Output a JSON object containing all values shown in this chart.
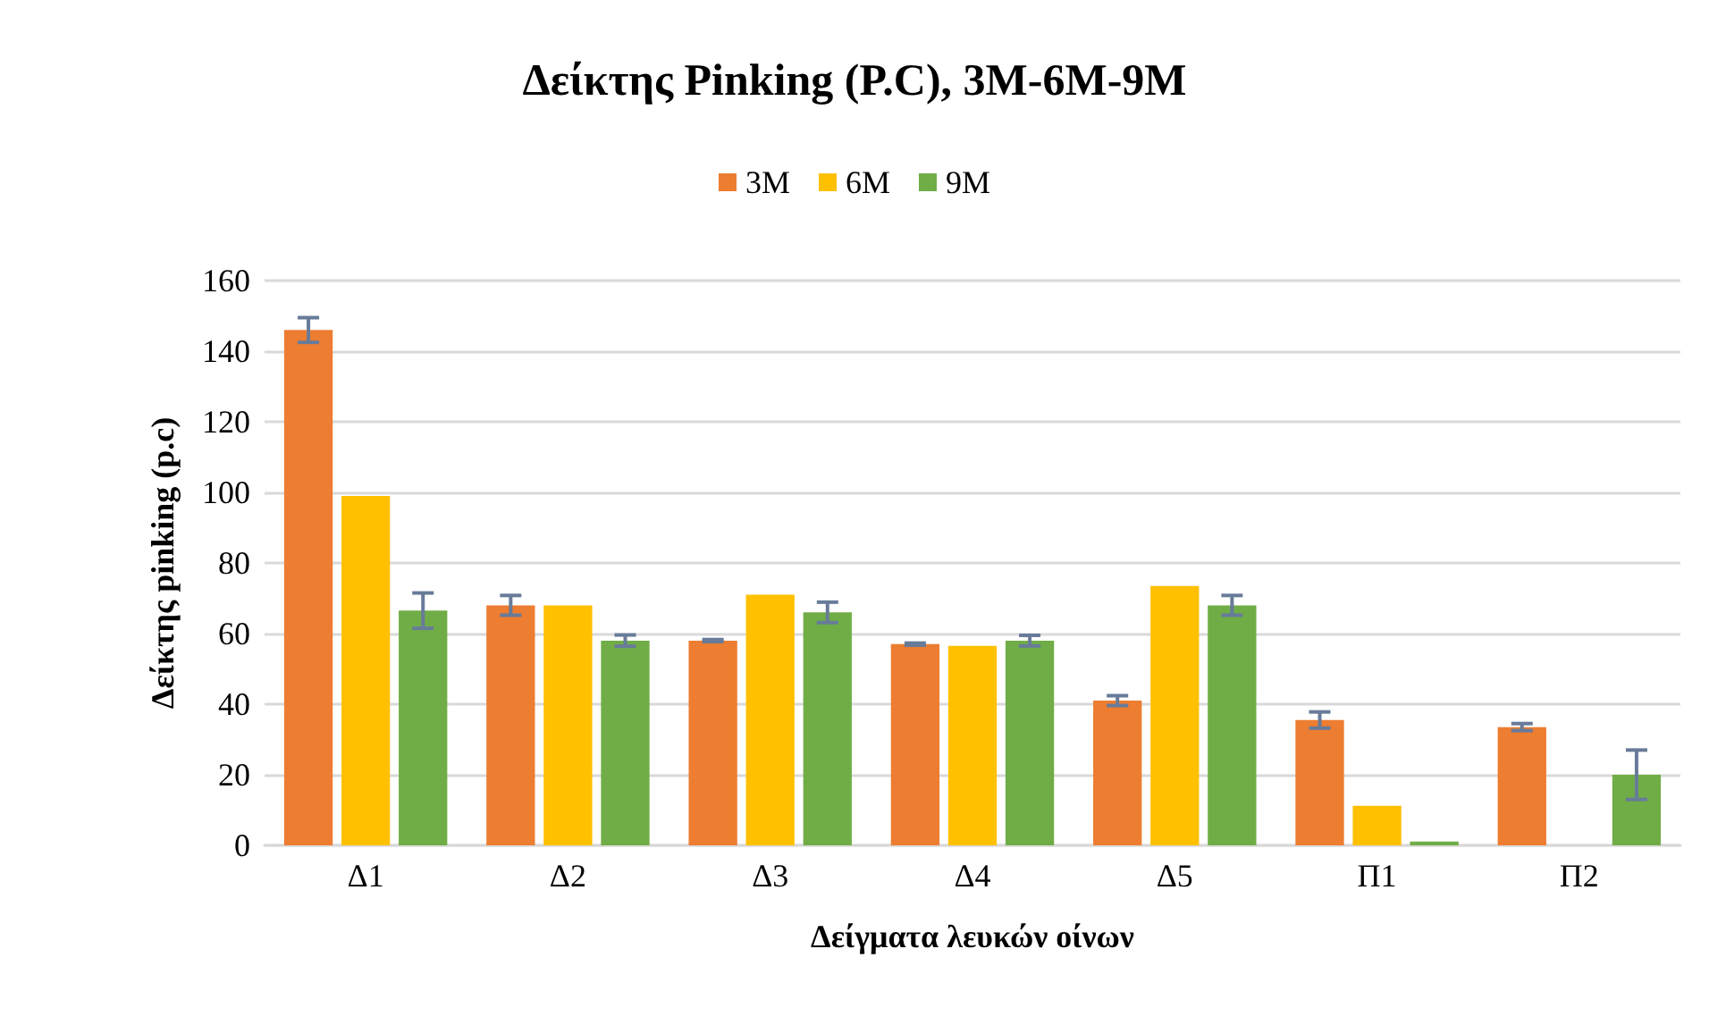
{
  "chart_data": {
    "type": "bar",
    "title": "Δείκτης Pinking (P.C), 3M-6M-9M",
    "xlabel": "Δείγματα λευκών οίνων",
    "ylabel": "Δείκτης pinking (p.c)",
    "categories": [
      "Δ1",
      "Δ2",
      "Δ3",
      "Δ4",
      "Δ5",
      "Π1",
      "Π2"
    ],
    "series": [
      {
        "name": "3M",
        "color": "#ed7d31",
        "values": [
          146,
          68,
          58,
          57,
          41,
          35.5,
          33.5
        ],
        "errors": [
          3.5,
          2.8,
          0.3,
          0.3,
          1.4,
          2.3,
          1
        ]
      },
      {
        "name": "6M",
        "color": "#ffc000",
        "values": [
          99,
          68,
          71,
          56.5,
          73.5,
          11.2,
          null
        ]
      },
      {
        "name": "9M",
        "color": "#70ad47",
        "values": [
          66.5,
          58,
          66,
          58,
          68,
          1.1,
          20
        ],
        "errors": [
          5,
          1.6,
          2.9,
          1.5,
          2.8,
          null,
          7
        ]
      }
    ],
    "ylim": [
      0,
      160
    ],
    "yticks": [
      0,
      20,
      40,
      60,
      80,
      100,
      120,
      140,
      160
    ],
    "grid": "y",
    "legend": "top"
  }
}
